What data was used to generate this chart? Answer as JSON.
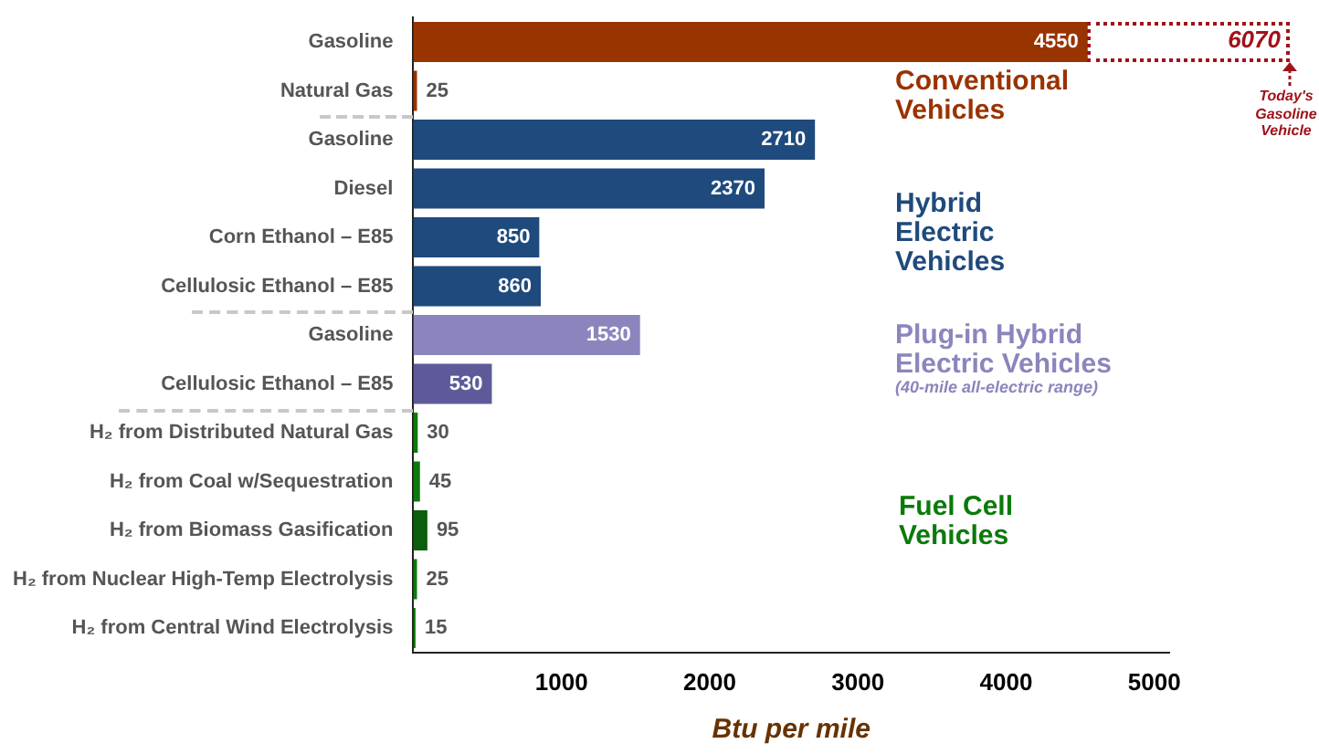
{
  "chart_data": {
    "type": "bar",
    "orientation": "horizontal",
    "xlabel": "Btu per mile",
    "categories": [
      "Gasoline",
      "Natural Gas",
      "Gasoline",
      "Diesel",
      "Corn Ethanol – E85",
      "Cellulosic Ethanol – E85",
      "Gasoline",
      "Cellulosic Ethanol – E85",
      "H₂ from Distributed Natural Gas",
      "H₂ from Coal w/Sequestration",
      "H₂ from Biomass Gasification",
      "H₂ from Nuclear High-Temp Electrolysis",
      "H₂ from Central Wind Electrolysis"
    ],
    "values": [
      4550,
      25,
      2710,
      2370,
      850,
      860,
      1530,
      530,
      30,
      45,
      95,
      25,
      15
    ],
    "colors": [
      "#993300",
      "#993300",
      "#1f4a7d",
      "#1f4a7d",
      "#1f4a7d",
      "#1f4a7d",
      "#8a86bd",
      "#5e5a99",
      "#0b7a0b",
      "#0b7a0b",
      "#0b5e0b",
      "#0b7a0b",
      "#0b7a0b"
    ],
    "xlim": [
      0,
      5100
    ],
    "xticks": [
      1000,
      2000,
      3000,
      4000,
      5000
    ],
    "grid": false,
    "legend": false,
    "data_labels": true,
    "annotations": [
      "Conventional Vehicles",
      "Hybrid Electric Vehicles",
      "Plug-in Hybrid Electric Vehicles",
      "(40-mile all-electric range)",
      "Fuel Cell Vehicles",
      "6070",
      "Today's Gasoline Vehicle"
    ]
  }
}
